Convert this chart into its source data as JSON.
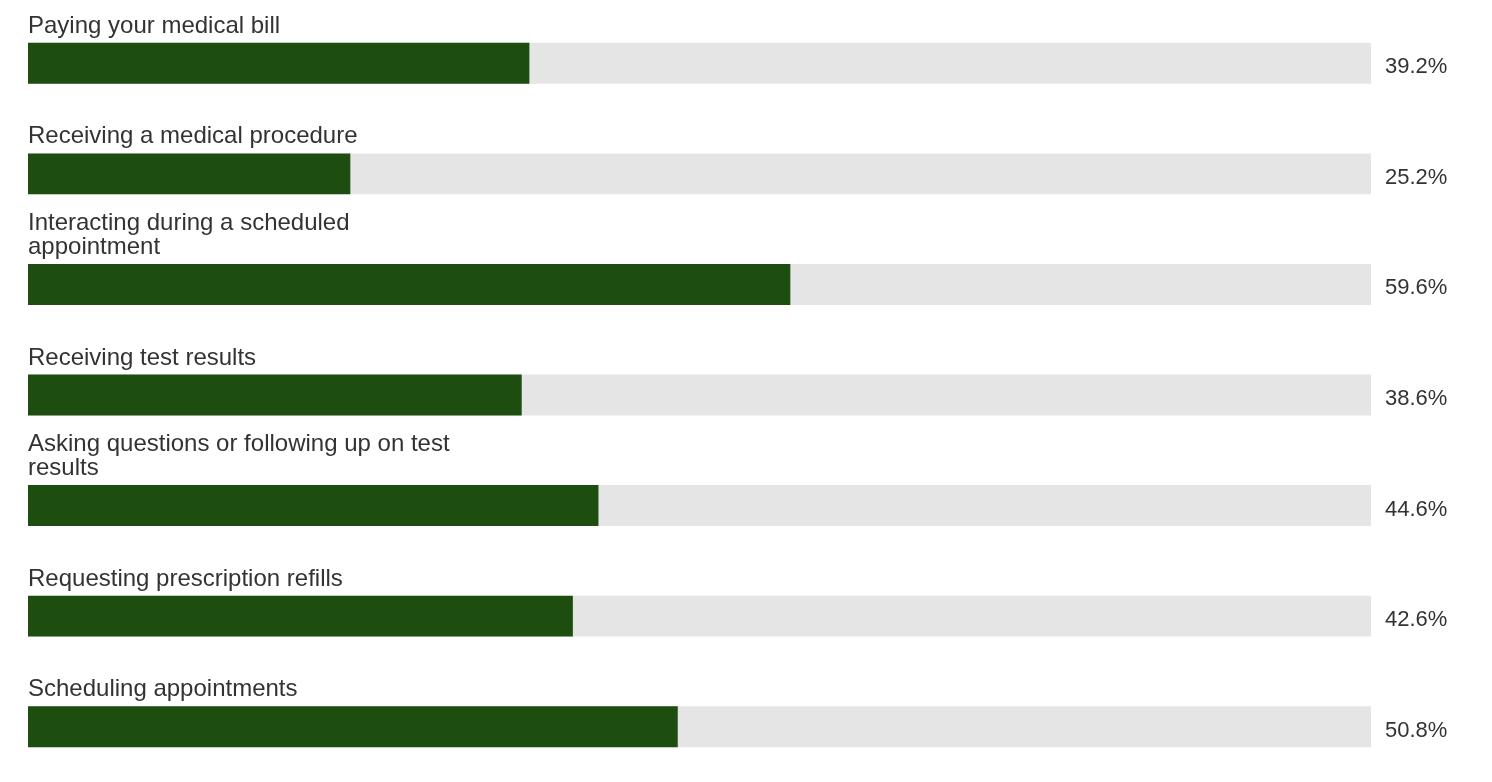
{
  "chart_data": {
    "type": "bar",
    "orientation": "horizontal",
    "categories": [
      "Paying your medical bill",
      "Receiving a medical procedure",
      "Interacting during a scheduled\nappointment",
      "Receiving test results",
      "Asking questions or following up on test\nresults",
      "Requesting prescription refills",
      "Scheduling appointments"
    ],
    "values": [
      39.2,
      25.2,
      59.6,
      38.6,
      44.6,
      42.6,
      50.8
    ],
    "value_labels": [
      "39.2%",
      "25.2%",
      "59.6%",
      "38.6%",
      "44.6%",
      "42.6%",
      "50.8%"
    ],
    "color": "#1e4d10",
    "xlim": [
      0,
      105
    ],
    "grid": false,
    "legend": false
  }
}
